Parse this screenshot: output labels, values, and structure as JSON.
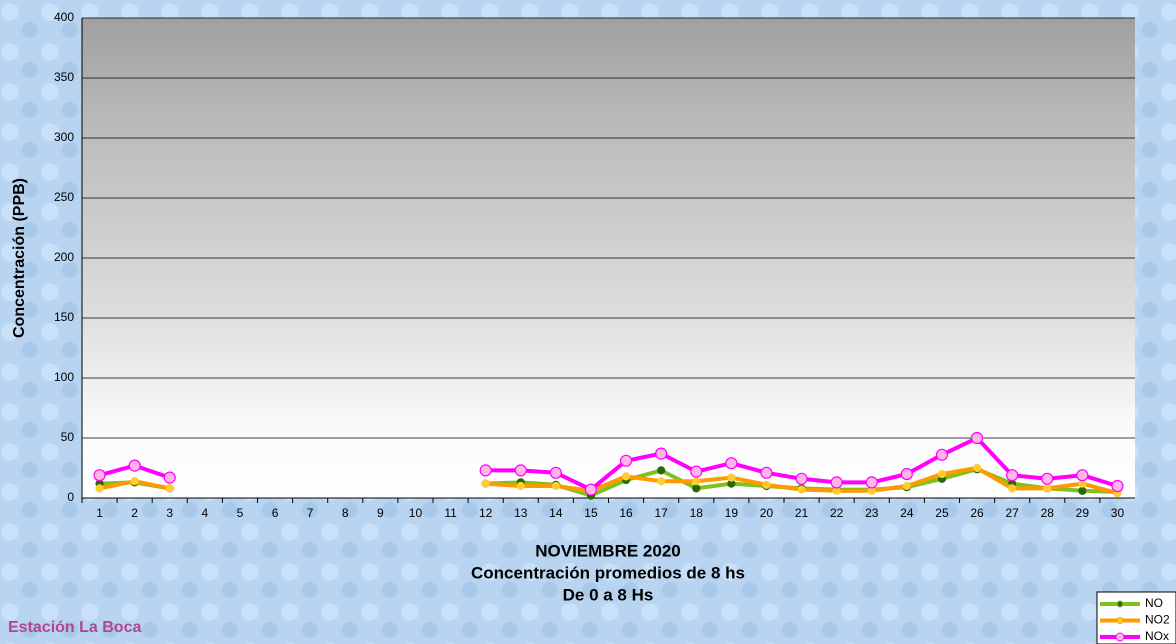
{
  "chart_data": {
    "type": "line",
    "title": "NOVIEMBRE 2020",
    "subtitle": "Concentración promedios de 8 hs",
    "note": "De 0 a 8 Hs",
    "station": "Estación La Boca",
    "y_label": "Concentración  (PPB)",
    "categories": [
      "1",
      "2",
      "3",
      "4",
      "5",
      "6",
      "7",
      "8",
      "9",
      "10",
      "11",
      "12",
      "13",
      "14",
      "15",
      "16",
      "17",
      "18",
      "19",
      "20",
      "21",
      "22",
      "23",
      "24",
      "25",
      "26",
      "27",
      "28",
      "29",
      "30"
    ],
    "series": [
      {
        "name": "NO",
        "color": "#80c020",
        "marker": "#2a6a00",
        "values": [
          12,
          13,
          8,
          null,
          null,
          null,
          null,
          null,
          null,
          null,
          null,
          12,
          13,
          11,
          2,
          15,
          23,
          8,
          12,
          10,
          8,
          7,
          7,
          9,
          16,
          24,
          12,
          8,
          6,
          5
        ]
      },
      {
        "name": "NO2",
        "color": "#ff9900",
        "marker": "#ffcc33",
        "values": [
          8,
          14,
          8,
          null,
          null,
          null,
          null,
          null,
          null,
          null,
          null,
          12,
          10,
          10,
          6,
          18,
          14,
          14,
          17,
          11,
          7,
          6,
          6,
          10,
          20,
          25,
          8,
          8,
          12,
          4
        ]
      },
      {
        "name": "NOx",
        "color": "#ff00ff",
        "marker": "#ffb6e6",
        "values": [
          19,
          27,
          17,
          null,
          null,
          null,
          null,
          null,
          null,
          null,
          null,
          23,
          23,
          21,
          7,
          31,
          37,
          22,
          29,
          21,
          16,
          13,
          13,
          20,
          36,
          50,
          19,
          16,
          19,
          10
        ]
      }
    ],
    "ylim": [
      0,
      400
    ],
    "yticks": [
      0,
      50,
      100,
      150,
      200,
      250,
      300,
      350,
      400
    ],
    "grid": true,
    "legend": "bottom-right"
  }
}
